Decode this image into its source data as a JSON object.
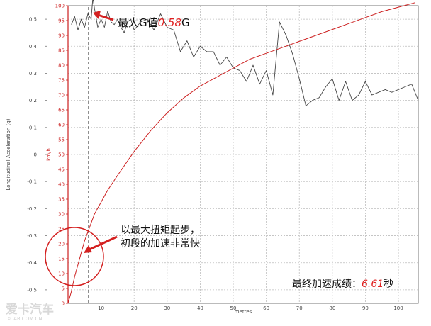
{
  "chart_data": {
    "type": "line",
    "xlabel": "metres",
    "y_left_label": "Longitudinal Acceleration (g)",
    "y_right_label": "km/h",
    "x_ticks": [
      10,
      20,
      30,
      40,
      50,
      60,
      70,
      80,
      90,
      100
    ],
    "y_left_ticks": [
      "0.5",
      "0.4",
      "0.3",
      "0.2",
      "0.1",
      "0",
      "-0.1",
      "-0.2",
      "-0.3",
      "-0.4",
      "-0.5"
    ],
    "y_speed_ticks": [
      100,
      95,
      90,
      85,
      80,
      75,
      70,
      65,
      60,
      55,
      50,
      45,
      40,
      35,
      30,
      25,
      20,
      15,
      10,
      5,
      0
    ],
    "xlim": [
      0,
      106
    ],
    "y_left_lim": [
      -0.55,
      0.55
    ],
    "y_speed_lim": [
      0,
      100
    ],
    "grid": true,
    "series": [
      {
        "color": "#444444",
        "axis": "left",
        "x": [
          1,
          2,
          3,
          4,
          5,
          6,
          7,
          7.5,
          8,
          9,
          10,
          11,
          12,
          13,
          14,
          15,
          16,
          17,
          18,
          19,
          20,
          22,
          24,
          26,
          28,
          30,
          32,
          34,
          36,
          38,
          40,
          42,
          44,
          46,
          48,
          50,
          52,
          54,
          56,
          58,
          60,
          62,
          64,
          66,
          68,
          70,
          72,
          74,
          76,
          78,
          80,
          82,
          84,
          86,
          88,
          90,
          92,
          94,
          96,
          98,
          100,
          102,
          104,
          106
        ],
        "y": [
          0.48,
          0.51,
          0.46,
          0.5,
          0.47,
          0.52,
          0.5,
          0.58,
          0.54,
          0.47,
          0.5,
          0.47,
          0.53,
          0.49,
          0.48,
          0.5,
          0.47,
          0.45,
          0.49,
          0.5,
          0.46,
          0.49,
          0.5,
          0.46,
          0.52,
          0.47,
          0.46,
          0.38,
          0.42,
          0.36,
          0.4,
          0.38,
          0.38,
          0.33,
          0.36,
          0.32,
          0.31,
          0.27,
          0.33,
          0.26,
          0.31,
          0.22,
          0.49,
          0.44,
          0.37,
          0.28,
          0.18,
          0.2,
          0.21,
          0.25,
          0.28,
          0.2,
          0.27,
          0.2,
          0.22,
          0.27,
          0.22,
          0.23,
          0.24,
          0.23,
          0.24,
          0.25,
          0.26,
          0.2
        ]
      },
      {
        "color": "#cc1f1f",
        "axis": "right",
        "x": [
          0,
          1,
          2,
          3,
          4,
          5,
          6,
          7,
          8,
          10,
          12,
          15,
          20,
          25,
          30,
          35,
          40,
          45,
          50,
          55,
          60,
          65,
          70,
          75,
          80,
          85,
          90,
          95,
          100,
          105
        ],
        "y": [
          0,
          4,
          9,
          13,
          17,
          21,
          24,
          27,
          30,
          34,
          38,
          43,
          51,
          58,
          64,
          69,
          73,
          76,
          79,
          82,
          84,
          86,
          88,
          90,
          92,
          94,
          96,
          98,
          99.5,
          101
        ]
      }
    ],
    "annotations": {
      "max_g_prefix": "最大G值",
      "max_g_value": "0.58",
      "max_g_suffix": "G",
      "start_line1": "以最大扭矩起步，",
      "start_line2": "初段的加速非常快",
      "final_prefix": "最终加速成绩：",
      "final_value": "6.61",
      "final_suffix": "秒"
    },
    "watermark": [
      "爱卡汽车",
      "XCAR.COM.CN"
    ],
    "colors": {
      "accel_line": "#444444",
      "speed_line": "#cc1f1f",
      "speed_axis": "#cc1f1f",
      "grid": "#bdbdbd",
      "highlight_value": "#e02020"
    }
  }
}
